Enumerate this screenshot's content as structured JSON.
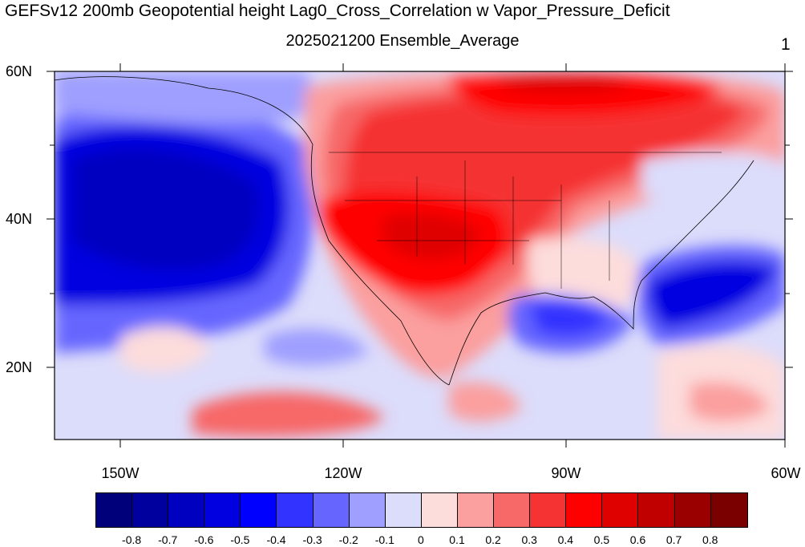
{
  "title": "GEFSv12 200mb Geopotential height Lag0_Cross_Correlation w Vapor_Pressure_Deficit",
  "subtitle": "2025021200 Ensemble_Average",
  "panel_number": "1",
  "lat_labels": [
    "60N",
    "40N",
    "20N"
  ],
  "lon_labels": [
    "150W",
    "120W",
    "90W",
    "60W"
  ],
  "colorbar": {
    "labels": [
      "-0.8",
      "-0.7",
      "-0.6",
      "-0.5",
      "-0.4",
      "-0.3",
      "-0.2",
      "-0.1",
      "0",
      "0.1",
      "0.2",
      "0.3",
      "0.4",
      "0.5",
      "0.6",
      "0.7",
      "0.8"
    ],
    "colors": [
      "#00007a",
      "#00009e",
      "#0000c0",
      "#0000e0",
      "#0000ff",
      "#3333ff",
      "#6666ff",
      "#9f9fff",
      "#dcdcfb",
      "#fddcdc",
      "#fb9f9f",
      "#f76868",
      "#f53333",
      "#ff0000",
      "#df0000",
      "#c00000",
      "#9a0000",
      "#7a0000"
    ]
  }
}
